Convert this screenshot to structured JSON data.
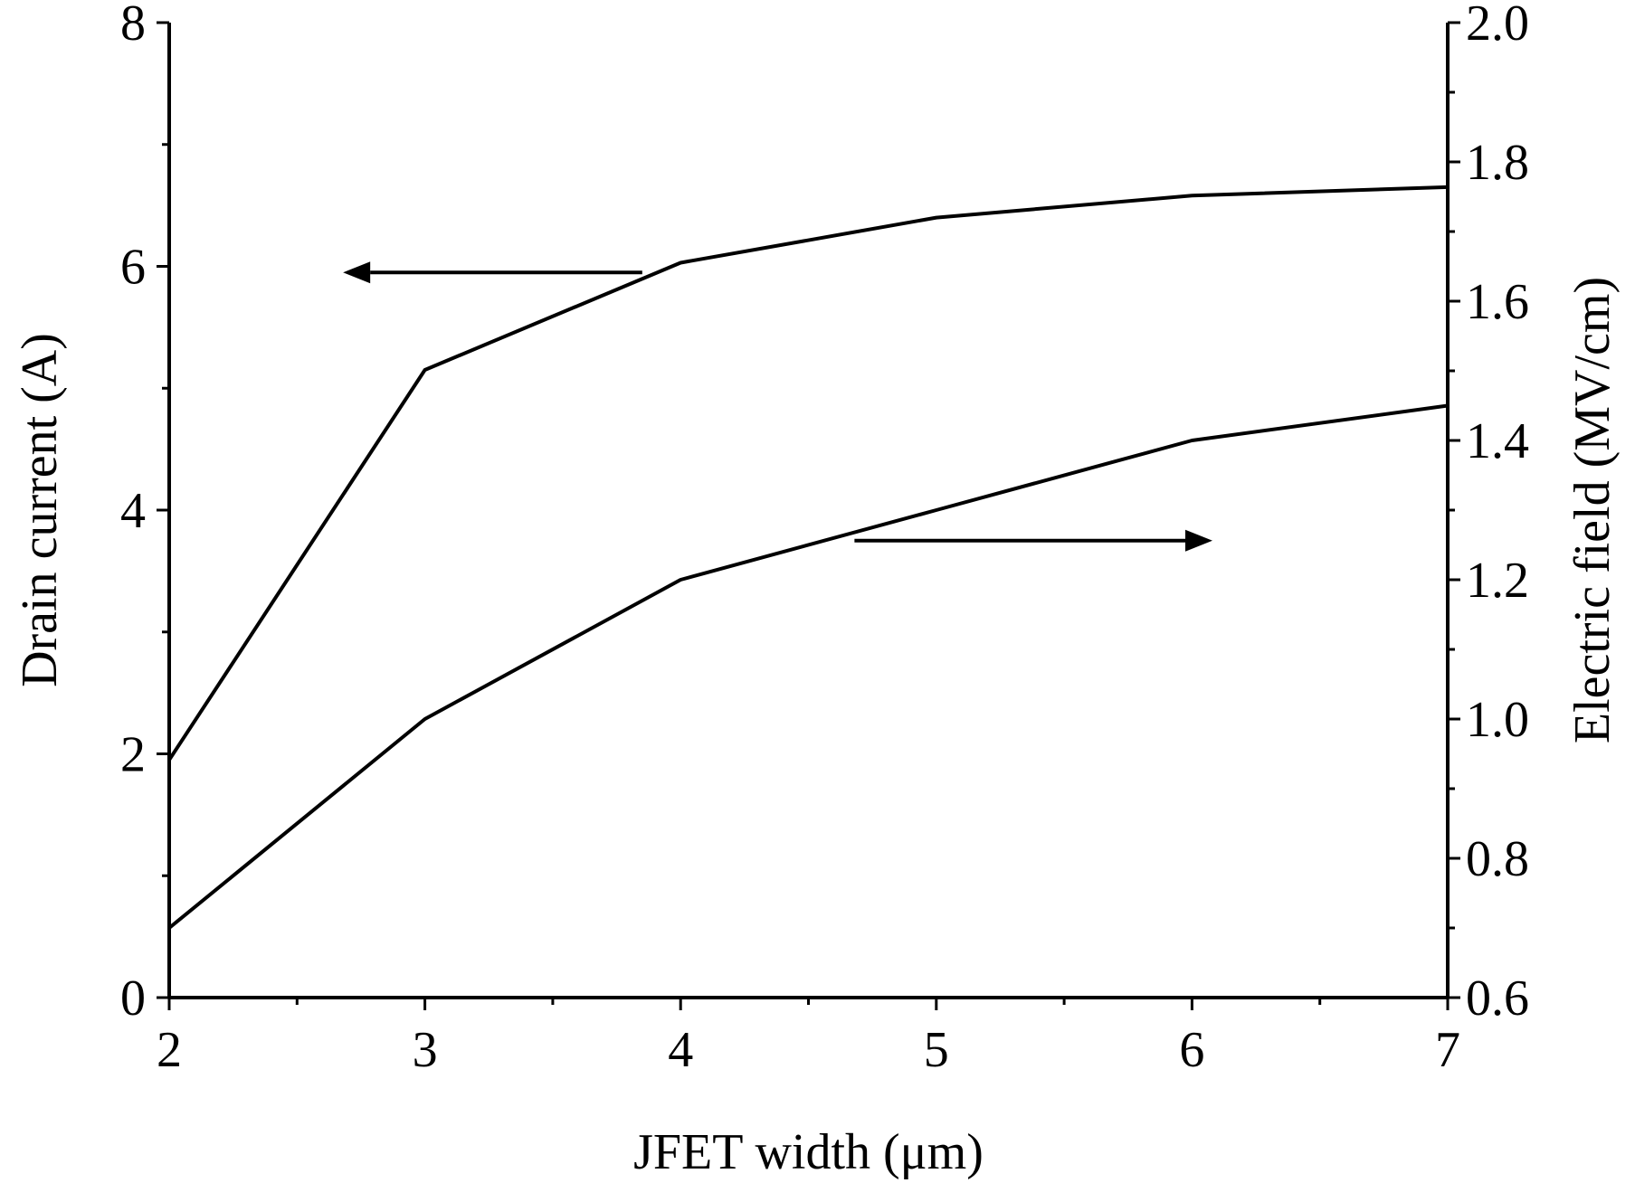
{
  "chart_data": {
    "type": "line",
    "title": "",
    "xlabel": "JFET width (μm)",
    "ylabel_left": "Drain current (A)",
    "ylabel_right": "Electric field (MV/cm)",
    "xlim": [
      2,
      7
    ],
    "ylim_left": [
      0,
      8
    ],
    "ylim_right": [
      0.6,
      2.0
    ],
    "grid": false,
    "x_ticks": [
      "2",
      "3",
      "4",
      "5",
      "6",
      "7"
    ],
    "y_left_ticks": [
      "0",
      "2",
      "4",
      "6",
      "8"
    ],
    "y_right_ticks": [
      "0.6",
      "0.8",
      "1.0",
      "1.2",
      "1.4",
      "1.6",
      "1.8",
      "2.0"
    ],
    "series": [
      {
        "axis": "left",
        "x": [
          2,
          3,
          4,
          5,
          6,
          7
        ],
        "values": [
          1.95,
          5.15,
          6.03,
          6.4,
          6.58,
          6.65
        ]
      },
      {
        "axis": "right",
        "x": [
          2,
          3,
          4,
          5,
          6,
          7
        ],
        "values": [
          0.7,
          1.0,
          1.2,
          1.3,
          1.4,
          1.45
        ]
      }
    ],
    "annotations": [
      {
        "type": "arrow",
        "direction": "left",
        "points_to": "left-axis",
        "x_from": 3.85,
        "x_to": 2.68,
        "y_left": 5.95
      },
      {
        "type": "arrow",
        "direction": "right",
        "points_to": "right-axis",
        "x_from": 4.68,
        "x_to": 6.08,
        "y_left": 3.75
      }
    ]
  }
}
